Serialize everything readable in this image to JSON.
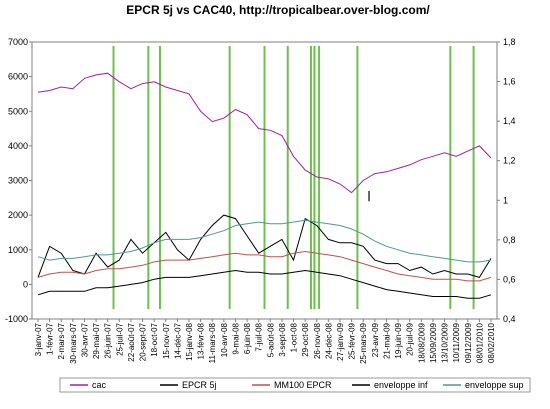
{
  "chart_data": {
    "type": "line",
    "title": "EPCR 5j vs CAC40, http://tropicalbear.over-blog.com/",
    "xlabel": "",
    "ylabel": "",
    "ylim": [
      -1000,
      7000
    ],
    "y_ticks": [
      "-1000",
      "0",
      "1000",
      "2000",
      "3000",
      "4000",
      "5000",
      "6000",
      "7000"
    ],
    "y2lim": [
      0.4,
      1.8
    ],
    "y2_ticks": [
      "0,4",
      "0,6",
      "0,8",
      "1",
      "1,2",
      "1,4",
      "1,6",
      "1,8"
    ],
    "x_ticks": [
      "3-janv-07",
      "1-févr-07",
      "2-mars-07",
      "30-mars-07",
      "30-avr-07",
      "29-mai-07",
      "26-juin-07",
      "25-juil-07",
      "22-août-07",
      "20-sept-07",
      "18-oct-07",
      "15-nov-07",
      "14-déc-07",
      "15-janv-08",
      "13-févr-08",
      "11-mars-08",
      "10-avr-08",
      "9-mai-08",
      "6-juin-08",
      "7-juil-08",
      "5-août-08",
      "3-sept-08",
      "1-oct-08",
      "29-oct-08",
      "26-nov-08",
      "24-déc-08",
      "27-janv-09",
      "25-févr-09",
      "25-mars-09",
      "23-avr-09",
      "21-mai-09",
      "19-juin-09",
      "20-juil-09",
      "18/08/2009",
      "15/09/2009",
      "13/10/2009",
      "10/11/2009",
      "09/12/2009",
      "08/01/2010",
      "08/02/2010"
    ],
    "legend_position": "bottom",
    "grid": false,
    "series": [
      {
        "name": "cac",
        "axis": "left",
        "color": "#a020a0",
        "values": [
          5550,
          5600,
          5700,
          5650,
          5950,
          6050,
          6100,
          5850,
          5650,
          5800,
          5850,
          5700,
          5600,
          5500,
          5000,
          4700,
          4800,
          5050,
          4900,
          4500,
          4450,
          4300,
          3700,
          3300,
          3100,
          3050,
          2900,
          2650,
          3000,
          3200,
          3250,
          3350,
          3450,
          3600,
          3700,
          3800,
          3700,
          3850,
          4000,
          3650
        ]
      },
      {
        "name": "EPCR 5j",
        "axis": "left",
        "color": "#000000",
        "values": [
          200,
          1100,
          900,
          400,
          300,
          900,
          500,
          700,
          1300,
          900,
          1200,
          1500,
          1000,
          700,
          1300,
          1700,
          2000,
          1900,
          1400,
          900,
          1100,
          1300,
          700,
          1900,
          1700,
          1300,
          1200,
          1200,
          1100,
          700,
          600,
          600,
          400,
          500,
          300,
          400,
          300,
          300,
          200,
          750
        ]
      },
      {
        "name": "MM100 EPCR",
        "axis": "left",
        "color": "#c0504d",
        "values": [
          200,
          300,
          350,
          350,
          300,
          400,
          450,
          450,
          500,
          550,
          650,
          700,
          700,
          700,
          750,
          800,
          850,
          900,
          850,
          850,
          800,
          800,
          900,
          950,
          900,
          850,
          800,
          700,
          600,
          500,
          400,
          300,
          250,
          200,
          150,
          150,
          150,
          100,
          100,
          200
        ]
      },
      {
        "name": "enveloppe inf",
        "axis": "left",
        "color": "#000000",
        "values": [
          -300,
          -200,
          -200,
          -200,
          -200,
          -100,
          -100,
          -50,
          0,
          50,
          150,
          200,
          200,
          200,
          250,
          300,
          350,
          400,
          350,
          350,
          300,
          300,
          350,
          400,
          350,
          300,
          250,
          150,
          50,
          -50,
          -150,
          -200,
          -250,
          -300,
          -350,
          -350,
          -350,
          -400,
          -400,
          -300
        ]
      },
      {
        "name": "enveloppe sup",
        "axis": "left",
        "color": "#4e9a8f",
        "values": [
          800,
          700,
          750,
          750,
          800,
          850,
          850,
          900,
          950,
          1050,
          1200,
          1300,
          1300,
          1300,
          1350,
          1450,
          1550,
          1700,
          1750,
          1800,
          1750,
          1750,
          1800,
          1850,
          1800,
          1750,
          1700,
          1600,
          1450,
          1250,
          1100,
          1000,
          900,
          850,
          800,
          750,
          700,
          650,
          650,
          700
        ]
      }
    ],
    "vertical_lines": {
      "color": "#6dc04b",
      "at_x_index": [
        6.5,
        9.5,
        10.5,
        16.5,
        19.5,
        21.5,
        23.5,
        23.8,
        24.2,
        27.5,
        35.5,
        37.5
      ]
    },
    "annotation_mark_x_index": 28.5
  }
}
